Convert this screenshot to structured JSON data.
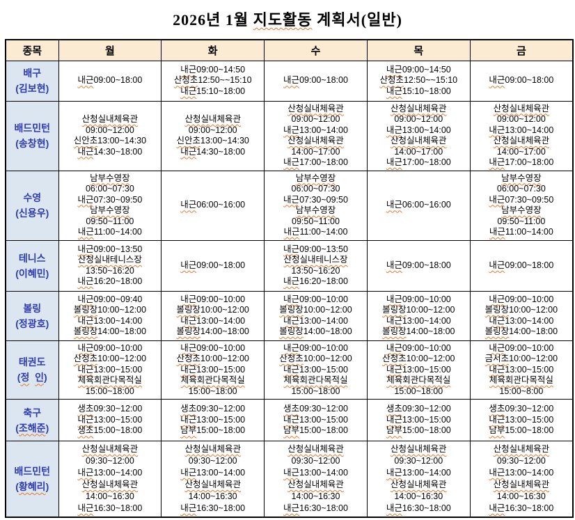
{
  "title": {
    "full": "2026년 1월 지도활동 계획서(일반)",
    "parts": [
      {
        "text": "2026년 1월 ",
        "squiggle": false
      },
      {
        "text": "지도활동",
        "squiggle": true
      },
      {
        "text": " 계획서(일반)",
        "squiggle": false
      }
    ]
  },
  "colors": {
    "header_bg": "#FAEBD2",
    "sport_column_bg": "#DCE6F1",
    "sport_column_text": "#2E3BAE",
    "squiggle_underline": "#E8762C",
    "table_border": "#000000"
  },
  "table": {
    "headers": [
      "종목",
      "월",
      "화",
      "수",
      "목",
      "금"
    ],
    "rows": [
      {
        "sport": "배구",
        "instructor": "(김보현)",
        "name_squiggle": false,
        "days": [
          [
            "내근09:00~18:00"
          ],
          [
            "내근09:00~14:50",
            "산청초12:50~~15:10",
            "내근15:10~18:00"
          ],
          [
            "내근09:00~18:00"
          ],
          [
            "내근09:00~14:50",
            "산청초12:50~~15:10",
            "내근15:10~18:00"
          ],
          [
            "내근09:00~18:00"
          ]
        ]
      },
      {
        "sport": "배드민턴",
        "instructor": "(송창현)",
        "name_squiggle": false,
        "days": [
          [
            "산청실내체육관",
            "09:00~12:00",
            "신안초13:00~14:30",
            "내근14:30~18:00"
          ],
          [
            "산청실내체육관",
            "09:00~12:00",
            "신안초13:00~14:30",
            "내근14:30~18:00"
          ],
          [
            "산청실내체육관",
            "09:00~12:00",
            "내근13:00~14:00",
            "산청실내체육관",
            "14:00~17:00",
            "내근17:00~18:00"
          ],
          [
            "산청실내체육관",
            "09:00~12:00",
            "내근13:00~14:00",
            "산청실내체육관",
            "14:00~17:00",
            "내근17:00~18:00"
          ],
          [
            "산청실내체육관",
            "09:00~12:00",
            "내근13:00~14:00",
            "산청실내체육관",
            "14:00~17:00",
            "내근17:00~18:00"
          ]
        ]
      },
      {
        "sport": "수영",
        "instructor": "(신용우)",
        "name_squiggle": false,
        "days": [
          [
            "남부수영장",
            "06:00~07:30",
            "내근07:30~09:50",
            "남부수영장",
            "09:50~11:00",
            "내근11:00~14:00"
          ],
          [
            "내근06:00~16:00"
          ],
          [
            "남부수영장",
            "06:00~07:30",
            "내근07:30~09:50",
            "남부수영장",
            "09:50~11:00",
            "내근11:00~14:00"
          ],
          [
            "내근06:00~16:00"
          ],
          [
            "남부수영장",
            "06:00~07:30",
            "내근07:30~09:50",
            "남부수영장",
            "09:50~11:00",
            "내근11:00~14:00"
          ]
        ]
      },
      {
        "sport": "테니스",
        "instructor": "(이혜민)",
        "name_squiggle": false,
        "days": [
          [
            "내근09:00~13:50",
            "산청실내테니스장",
            "13:50~16:20",
            "내근16:20~18:00"
          ],
          [
            "내근09:00~18:00"
          ],
          [
            "내근09:00~13:50",
            "산청실내테니스장",
            "13:50~16:20",
            "내근16:20~18:00"
          ],
          [
            "내근09:00~18:00"
          ],
          [
            "내근09:00~18:00"
          ]
        ]
      },
      {
        "sport": "볼링",
        "instructor": "(정광호)",
        "name_squiggle": false,
        "days": [
          [
            "내근09:00~09:40",
            "볼링장10:00~12:00",
            "내근13:00~14:00",
            "볼링장14:00~18:00"
          ],
          [
            "내근09:00~10:00",
            "볼링장10:00~12:00",
            "내근13:00~14:00",
            "볼링장14:00~18:00"
          ],
          [
            "내근09:00~10:00",
            "볼링장10:00~12:00",
            "내근13:00~14:00",
            "볼링장14:00~18:00"
          ],
          [
            "내근09:00~10:00",
            "볼링장10:00~12:00",
            "내근13:00~14:00",
            "볼링장14:00~18:00"
          ],
          [
            "내근09:00~10:00",
            "볼링장10:00~12:00",
            "내근13:00~14:00",
            "볼링장14:00~18:00"
          ]
        ]
      },
      {
        "sport": "태권도",
        "instructor": "(정  인)",
        "name_squiggle": true,
        "days": [
          [
            "내근09:00~10:00",
            "산청초10:00~12:00",
            "내근13:00~15:00",
            "체육회관다목적실",
            "15:00~18:00"
          ],
          [
            "내근09:00~10:00",
            "산청초10:00~12:00",
            "내근13:00~15:00",
            "체육회관다목적실",
            "15:00~18:00"
          ],
          [
            "내근09:00~10:00",
            "산청초10:00~12:00",
            "내근13:00~15:00",
            "체육회관다목적실",
            "15:00~18:00"
          ],
          [
            "내근09:00~10:00",
            "산청초10:00~12:00",
            "내근13:00~15:00",
            "체육회관다목적실",
            "15:00~18:00"
          ],
          [
            "내근09:00~10:00",
            "금서초10:00~12:00",
            "내근13:00~15:00",
            "체육회관다목적실",
            "15:00~8:00"
          ]
        ]
      },
      {
        "sport": "축구",
        "instructor": "(조해준)",
        "name_squiggle": true,
        "days": [
          [
            "생초09:30~12:00",
            "내근13:00~15:00",
            "생초15:00~18:00"
          ],
          [
            "생초09:30~12:00",
            "내근13:00~15:00",
            "남부15:00~18:00"
          ],
          [
            "생초09:30~12:00",
            "내근13:00~15:00",
            "남부15:00~18:00"
          ],
          [
            "생초09:30~12:00",
            "내근13:00~15:00",
            "남부15:00~18:00"
          ],
          [
            "생초09:30~12:00",
            "내근13:00~15:00",
            "남부15:00~18:00"
          ]
        ]
      },
      {
        "sport": "배드민턴",
        "instructor": "(황혜리)",
        "name_squiggle": true,
        "days": [
          [
            "산청실내체육관",
            "09:30~12:00",
            "내근13:00~14:00",
            "산청실내체육관",
            "14:00~16:30",
            "내근16:30~18:00"
          ],
          [
            "산청실내체육관",
            "09:30~12:00",
            "내근13:00~14:00",
            "산청실내체육관",
            "14:00~16:30",
            "내근16:30~18:00"
          ],
          [
            "산청실내체육관",
            "09:30~12:00",
            "내근13:00~14:00",
            "산청실내체육관",
            "14:00~16:30",
            "내근16:30~18:00"
          ],
          [
            "산청실내체육관",
            "09:30~12:00",
            "내근13:00~14:00",
            "산청실내체육관",
            "14:00~16:30",
            "내근16:30~18:00"
          ],
          [
            "산청실내체육관",
            "09:30~12:00",
            "내근13:00~14:00",
            "산청실내체육관",
            "14:00~16:30",
            "내근16:30~18:00"
          ]
        ]
      }
    ]
  }
}
